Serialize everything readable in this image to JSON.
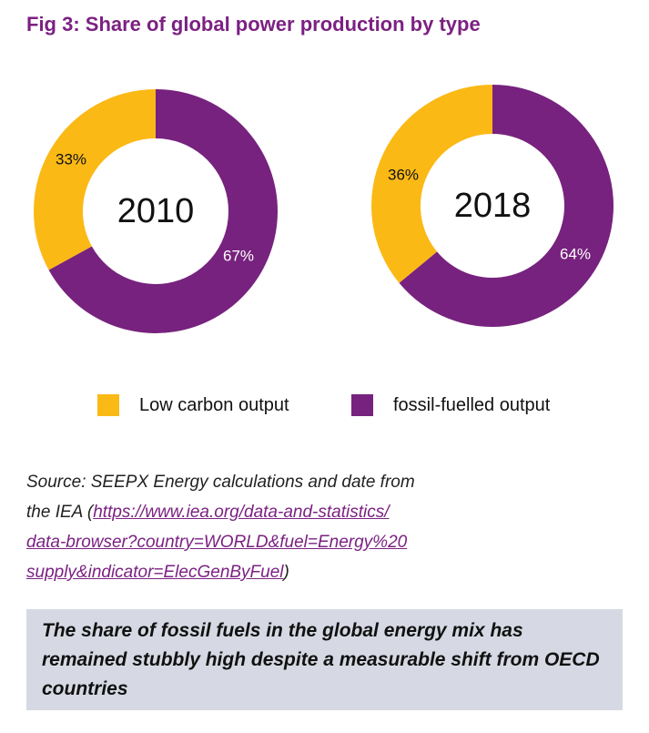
{
  "title": "Fig 3: Share of global power production by type",
  "colors": {
    "low_carbon": "#fbb916",
    "fossil": "#77227e",
    "title": "#7b2182",
    "callout_bg": "#d6d9e3"
  },
  "chart_data": [
    {
      "type": "pie",
      "center_label": "2010",
      "categories": [
        "Low carbon output",
        "fossil-fuelled output"
      ],
      "values": [
        33,
        67
      ],
      "labels": [
        "33%",
        "67%"
      ]
    },
    {
      "type": "pie",
      "center_label": "2018",
      "categories": [
        "Low carbon output",
        "fossil-fuelled output"
      ],
      "values": [
        36,
        64
      ],
      "labels": [
        "36%",
        "64%"
      ]
    }
  ],
  "legend": [
    {
      "label": "Low carbon output"
    },
    {
      "label": "fossil-fuelled output"
    }
  ],
  "source": {
    "line1": "Source: SEEPX Energy calculations and date from",
    "line2_prefix": "the IEA (",
    "url_part1": "https://www.iea.org/data-and-statistics/",
    "url_part2": "data-browser?country=WORLD&fuel=Energy%20",
    "url_part3": "supply&indicator=ElecGenByFuel",
    "suffix": ")"
  },
  "callout": "The share of fossil fuels in the global energy mix has remained stubbly high despite a measurable shift from OECD countries"
}
